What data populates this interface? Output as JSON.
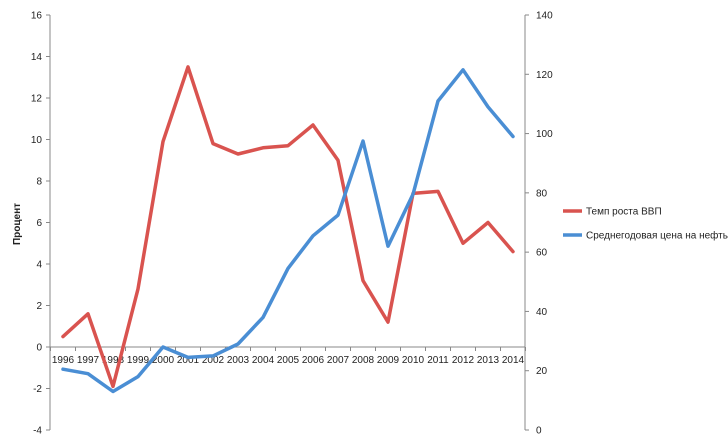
{
  "chart_data": {
    "type": "line",
    "title": "",
    "x": [
      "1996",
      "1997",
      "1998",
      "1999",
      "2000",
      "2001",
      "2002",
      "2003",
      "2004",
      "2005",
      "2006",
      "2007",
      "2008",
      "2009",
      "2010",
      "2011",
      "2012",
      "2013",
      "2014"
    ],
    "ylabel": "Процент",
    "y_left": {
      "min": -4,
      "max": 16,
      "step": 2,
      "ticks": [
        "-4",
        "-2",
        "0",
        "2",
        "4",
        "6",
        "8",
        "10",
        "12",
        "14",
        "16"
      ]
    },
    "y_right": {
      "min": 0,
      "max": 140,
      "step": 20,
      "ticks": [
        "0",
        "20",
        "40",
        "60",
        "80",
        "100",
        "120",
        "140"
      ]
    },
    "grid": false,
    "legend_position": "right",
    "series": [
      {
        "name": "Темп роста ВВП",
        "axis": "left",
        "color": "#d9534f",
        "values": [
          0.5,
          1.6,
          -1.9,
          2.8,
          9.9,
          13.5,
          9.8,
          9.3,
          9.6,
          9.7,
          10.7,
          9.0,
          3.2,
          1.2,
          7.4,
          7.5,
          5.0,
          6.0,
          4.6
        ]
      },
      {
        "name": "Среднегодовая цена на нефть",
        "axis": "right",
        "color": "#4a8ed4",
        "values": [
          20.5,
          19.0,
          13.0,
          18.0,
          28.0,
          24.5,
          25.0,
          29.0,
          38.0,
          54.5,
          65.5,
          72.5,
          97.5,
          62.0,
          79.5,
          111.0,
          121.5,
          109.0,
          99.0
        ]
      }
    ]
  }
}
